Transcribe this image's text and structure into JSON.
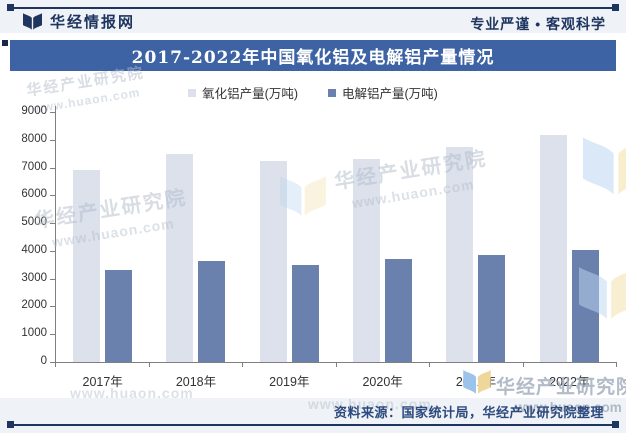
{
  "header": {
    "brand": "华经情报网",
    "slogan": "专业严谨 • 客观科学"
  },
  "title": "2017-2022年中国氧化铝及电解铝产量情况",
  "chart_data": {
    "type": "bar",
    "title": "2017-2022年中国氧化铝及电解铝产量情况",
    "categories": [
      "2017年",
      "2018年",
      "2019年",
      "2020年",
      "2021年",
      "2022年"
    ],
    "series": [
      {
        "name": "氧化铝产量(万吨)",
        "key": "alumina",
        "color": "#dce1ec",
        "values": [
          6902,
          7500,
          7247,
          7313,
          7748,
          8186
        ]
      },
      {
        "name": "电解铝产量(万吨)",
        "key": "electrolytic-aluminum",
        "color": "#6a81ad",
        "values": [
          3329,
          3649,
          3504,
          3708,
          3850,
          4021
        ]
      }
    ],
    "xlabel": "",
    "ylabel": "",
    "ylim": [
      0,
      9000
    ],
    "ytick_step": 1000,
    "grid": false,
    "legend_position": "top"
  },
  "footer": {
    "source": "资料来源：国家统计局，华经产业研究院整理"
  },
  "watermark": {
    "name": "华经产业研究院",
    "url": "www.huaon.com"
  },
  "colors": {
    "banner": "#3e63a4",
    "navy": "#1e3560",
    "axis": "#7f7f7f",
    "footer_text": "#2d4a7e"
  }
}
